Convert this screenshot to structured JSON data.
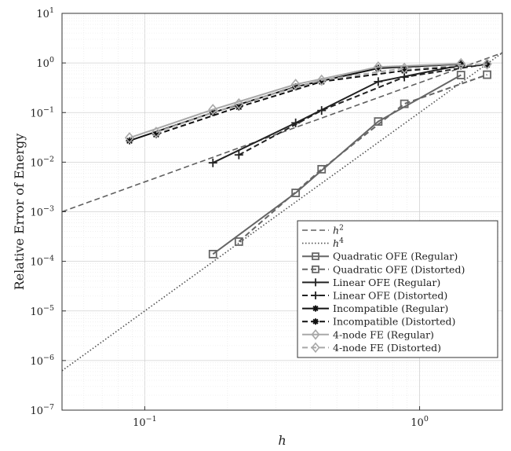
{
  "chart_data": {
    "type": "line",
    "xlabel": "h",
    "ylabel": "Relative Error of Energy",
    "xscale": "log",
    "yscale": "log",
    "xlim": [
      0.05,
      2.0
    ],
    "ylim": [
      1e-07,
      10
    ],
    "grid": true,
    "legend_position": "bottom-right",
    "x_ticks": [
      {
        "value": 0.1,
        "base": "10",
        "exp": "−1"
      },
      {
        "value": 1,
        "label": "10",
        "exp": "0"
      }
    ],
    "y_ticks": [
      {
        "value": 1e-07,
        "base": "10",
        "exp": "−7"
      },
      {
        "value": 1e-06,
        "base": "10",
        "exp": "−6"
      },
      {
        "value": 1e-05,
        "base": "10",
        "exp": "−5"
      },
      {
        "value": 0.0001,
        "base": "10",
        "exp": "−4"
      },
      {
        "value": 0.001,
        "base": "10",
        "exp": "−3"
      },
      {
        "value": 0.01,
        "base": "10",
        "exp": "−2"
      },
      {
        "value": 0.1,
        "base": "10",
        "exp": "−1"
      },
      {
        "value": 1,
        "base": "10",
        "exp": "0"
      },
      {
        "value": 10,
        "base": "10",
        "exp": "1"
      }
    ],
    "series": [
      {
        "name": "h",
        "sup": "2",
        "style": "dashed",
        "color": "#606060",
        "marker": "none",
        "x": [
          0.05,
          2.0
        ],
        "y": [
          0.001,
          1.6
        ]
      },
      {
        "name": "h",
        "sup": "4",
        "style": "dotted",
        "color": "#505050",
        "marker": "none",
        "x": [
          0.05,
          2.0
        ],
        "y": [
          6.25e-07,
          1.6
        ]
      },
      {
        "name": "Quadratic OFE (Regular)",
        "style": "solid",
        "color": "#666666",
        "marker": "square",
        "x": [
          0.177,
          0.354,
          0.707,
          1.414
        ],
        "y": [
          0.00014,
          0.0024,
          0.066,
          0.57
        ]
      },
      {
        "name": "Quadratic OFE (Distorted)",
        "style": "dashed",
        "color": "#666666",
        "marker": "square",
        "x": [
          0.22,
          0.44,
          0.88,
          1.76
        ],
        "y": [
          0.00025,
          0.0072,
          0.15,
          0.58
        ]
      },
      {
        "name": "Linear OFE (Regular)",
        "style": "solid",
        "color": "#222222",
        "marker": "plus",
        "x": [
          0.177,
          0.354,
          0.707,
          1.414
        ],
        "y": [
          0.0097,
          0.062,
          0.42,
          0.9
        ]
      },
      {
        "name": "Linear OFE (Distorted)",
        "style": "dashed",
        "color": "#222222",
        "marker": "plus",
        "x": [
          0.22,
          0.44,
          0.88,
          1.76
        ],
        "y": [
          0.014,
          0.11,
          0.52,
          0.95
        ]
      },
      {
        "name": "Incompatible (Regular)",
        "style": "solid",
        "color": "#111111",
        "marker": "asterisk",
        "x": [
          0.088,
          0.177,
          0.354,
          0.707,
          1.414
        ],
        "y": [
          0.027,
          0.1,
          0.33,
          0.78,
          0.95
        ]
      },
      {
        "name": "Incompatible (Distorted)",
        "style": "dashed",
        "color": "#111111",
        "marker": "asterisk",
        "x": [
          0.11,
          0.22,
          0.44,
          0.88,
          1.76
        ],
        "y": [
          0.036,
          0.13,
          0.42,
          0.7,
          0.92
        ]
      },
      {
        "name": "4-node FE (Regular)",
        "style": "solid",
        "color": "#a8a8a8",
        "marker": "diamond",
        "x": [
          0.088,
          0.177,
          0.354,
          0.707,
          1.414
        ],
        "y": [
          0.031,
          0.115,
          0.37,
          0.83,
          0.97
        ]
      },
      {
        "name": "4-node FE (Distorted)",
        "style": "dashed",
        "color": "#a8a8a8",
        "marker": "diamond",
        "x": [
          0.11,
          0.22,
          0.44,
          0.88,
          1.76
        ],
        "y": [
          0.04,
          0.15,
          0.45,
          0.78,
          0.95
        ]
      }
    ]
  }
}
